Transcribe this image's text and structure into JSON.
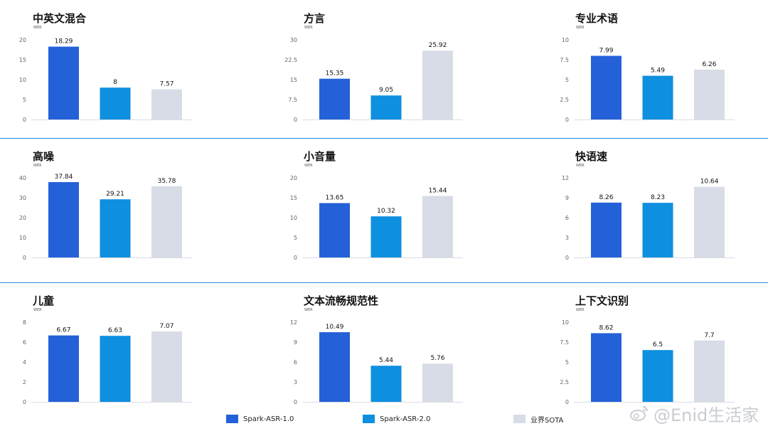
{
  "chart_data": [
    {
      "type": "bar",
      "title": "中英文混合",
      "ylabel": "WER",
      "categories": [
        "Spark-ASR-1.0",
        "Spark-ASR-2.0",
        "业界SOTA"
      ],
      "values": [
        18.29,
        8,
        7.57
      ],
      "value_labels": [
        "18.29",
        "8",
        "7.57"
      ],
      "yticks": [
        "0",
        "5",
        "10",
        "15",
        "20"
      ],
      "ylim": [
        0,
        20
      ],
      "legend": "bottom"
    },
    {
      "type": "bar",
      "title": "方言",
      "ylabel": "WER",
      "categories": [
        "Spark-ASR-1.0",
        "Spark-ASR-2.0",
        "业界SOTA"
      ],
      "values": [
        15.35,
        9.05,
        25.92
      ],
      "value_labels": [
        "15.35",
        "9.05",
        "25.92"
      ],
      "yticks": [
        "0",
        "7.5",
        "15",
        "22.5",
        "30"
      ],
      "ylim": [
        0,
        30
      ],
      "legend": "bottom"
    },
    {
      "type": "bar",
      "title": "专业术语",
      "ylabel": "WER",
      "categories": [
        "Spark-ASR-1.0",
        "Spark-ASR-2.0",
        "业界SOTA"
      ],
      "values": [
        7.99,
        5.49,
        6.26
      ],
      "value_labels": [
        "7.99",
        "5.49",
        "6.26"
      ],
      "yticks": [
        "0",
        "2.5",
        "5",
        "7.5",
        "10"
      ],
      "ylim": [
        0,
        10
      ],
      "legend": "bottom"
    },
    {
      "type": "bar",
      "title": "高噪",
      "ylabel": "WER",
      "categories": [
        "Spark-ASR-1.0",
        "Spark-ASR-2.0",
        "业界SOTA"
      ],
      "values": [
        37.84,
        29.21,
        35.78
      ],
      "value_labels": [
        "37.84",
        "29.21",
        "35.78"
      ],
      "yticks": [
        "0",
        "10",
        "20",
        "30",
        "40"
      ],
      "ylim": [
        0,
        40
      ],
      "legend": "bottom"
    },
    {
      "type": "bar",
      "title": "小音量",
      "ylabel": "WER",
      "categories": [
        "Spark-ASR-1.0",
        "Spark-ASR-2.0",
        "业界SOTA"
      ],
      "values": [
        13.65,
        10.32,
        15.44
      ],
      "value_labels": [
        "13.65",
        "10.32",
        "15.44"
      ],
      "yticks": [
        "0",
        "5",
        "10",
        "15",
        "20"
      ],
      "ylim": [
        0,
        20
      ],
      "legend": "bottom"
    },
    {
      "type": "bar",
      "title": "快语速",
      "ylabel": "WER",
      "categories": [
        "Spark-ASR-1.0",
        "Spark-ASR-2.0",
        "业界SOTA"
      ],
      "values": [
        8.26,
        8.23,
        10.64
      ],
      "value_labels": [
        "8.26",
        "8.23",
        "10.64"
      ],
      "yticks": [
        "0",
        "3",
        "6",
        "9",
        "12"
      ],
      "ylim": [
        0,
        12
      ],
      "legend": "bottom"
    },
    {
      "type": "bar",
      "title": "儿童",
      "ylabel": "WER",
      "categories": [
        "Spark-ASR-1.0",
        "Spark-ASR-2.0",
        "业界SOTA"
      ],
      "values": [
        6.67,
        6.63,
        7.07
      ],
      "value_labels": [
        "6.67",
        "6.63",
        "7.07"
      ],
      "yticks": [
        "0",
        "2",
        "4",
        "6",
        "8"
      ],
      "ylim": [
        0,
        8
      ],
      "legend": "bottom"
    },
    {
      "type": "bar",
      "title": "文本流畅规范性",
      "ylabel": "WER",
      "categories": [
        "Spark-ASR-1.0",
        "Spark-ASR-2.0",
        "业界SOTA"
      ],
      "values": [
        10.49,
        5.44,
        5.76
      ],
      "value_labels": [
        "10.49",
        "5.44",
        "5.76"
      ],
      "yticks": [
        "0",
        "3",
        "6",
        "9",
        "12"
      ],
      "ylim": [
        0,
        12
      ],
      "legend": "bottom"
    },
    {
      "type": "bar",
      "title": "上下文识别",
      "ylabel": "WER",
      "categories": [
        "Spark-ASR-1.0",
        "Spark-ASR-2.0",
        "业界SOTA"
      ],
      "values": [
        8.62,
        6.5,
        7.7
      ],
      "value_labels": [
        "8.62",
        "6.5",
        "7.7"
      ],
      "yticks": [
        "0",
        "2.5",
        "5",
        "7.5",
        "10"
      ],
      "ylim": [
        0,
        10
      ],
      "legend": "bottom"
    }
  ],
  "legend": [
    {
      "label": "Spark-ASR-1.0",
      "color": "#2460d8"
    },
    {
      "label": "Spark-ASR-2.0",
      "color": "#0e8fe0"
    },
    {
      "label": "业界SOTA",
      "color": "#d7dce6"
    }
  ],
  "series_colors": [
    "#2460d8",
    "#0e8fe0",
    "#d7dce6"
  ],
  "watermark": {
    "text": "@Enid生活家",
    "icon": "weibo-logo-icon"
  }
}
